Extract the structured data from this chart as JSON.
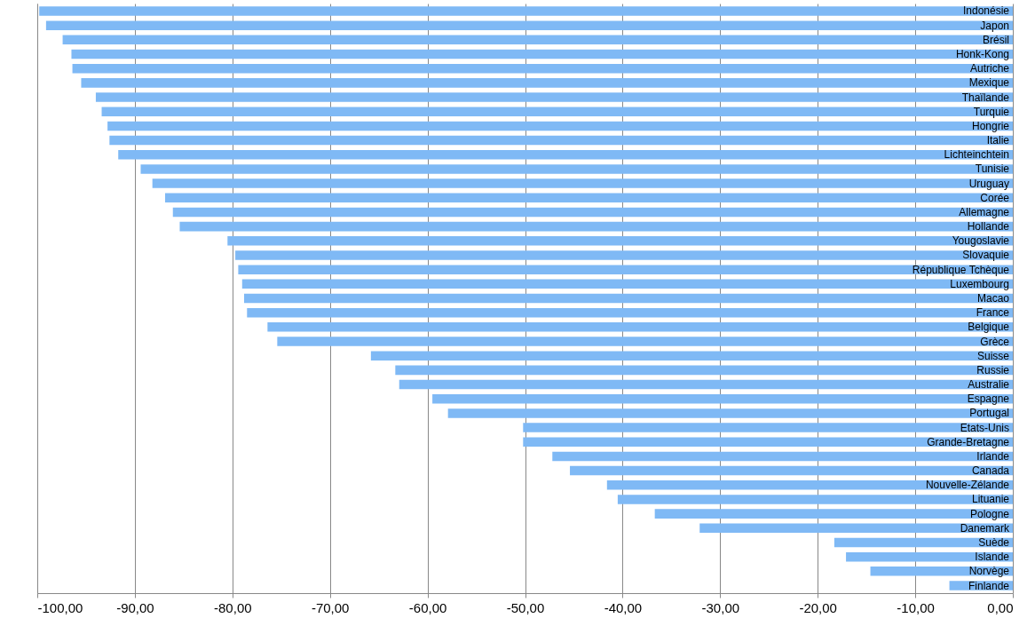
{
  "chart_data": {
    "type": "bar",
    "orientation": "horizontal",
    "categories": [
      "Indonésie",
      "Japon",
      "Brésil",
      "Honk-Kong",
      "Autriche",
      "Mexique",
      "Thaïlande",
      "Turquie",
      "Hongrie",
      "Italie",
      "Lichteinchtein",
      "Tunisie",
      "Uruguay",
      "Corée",
      "Allemagne",
      "Hollande",
      "Yougoslavie",
      "Slovaquie",
      "République Tchèque",
      "Luxembourg",
      "Macao",
      "France",
      "Belgique",
      "Grèce",
      "Suisse",
      "Russie",
      "Australie",
      "Espagne",
      "Portugal",
      "Etats-Unis",
      "Grande-Bretagne",
      "Irlande",
      "Canada",
      "Nouvelle-Zélande",
      "Lituanie",
      "Pologne",
      "Danemark",
      "Suède",
      "Islande",
      "Norvège",
      "Finlande"
    ],
    "values": [
      -99.8,
      -99.1,
      -97.4,
      -96.5,
      -96.4,
      -95.5,
      -94.0,
      -93.4,
      -92.8,
      -92.6,
      -91.7,
      -89.4,
      -88.2,
      -86.9,
      -86.1,
      -85.4,
      -80.5,
      -79.7,
      -79.4,
      -79.0,
      -78.8,
      -78.5,
      -76.4,
      -75.4,
      -65.8,
      -63.3,
      -62.9,
      -59.5,
      -57.9,
      -50.2,
      -50.2,
      -47.2,
      -45.4,
      -41.6,
      -40.5,
      -36.7,
      -32.1,
      -18.3,
      -17.1,
      -14.6,
      -6.5
    ],
    "color": "#7fb9f5",
    "xlim": [
      -100,
      0
    ],
    "xticks": [
      {
        "value": -100,
        "label": "-100,00"
      },
      {
        "value": -90,
        "label": "-90,00"
      },
      {
        "value": -80,
        "label": "-80,00"
      },
      {
        "value": -70,
        "label": "-70,00"
      },
      {
        "value": -60,
        "label": "-60,00"
      },
      {
        "value": -50,
        "label": "-50,00"
      },
      {
        "value": -40,
        "label": "-40,00"
      },
      {
        "value": -30,
        "label": "-30,00"
      },
      {
        "value": -20,
        "label": "-20,00"
      },
      {
        "value": -10,
        "label": "-10,00"
      },
      {
        "value": 0,
        "label": "0,00"
      }
    ],
    "grid": "x"
  }
}
